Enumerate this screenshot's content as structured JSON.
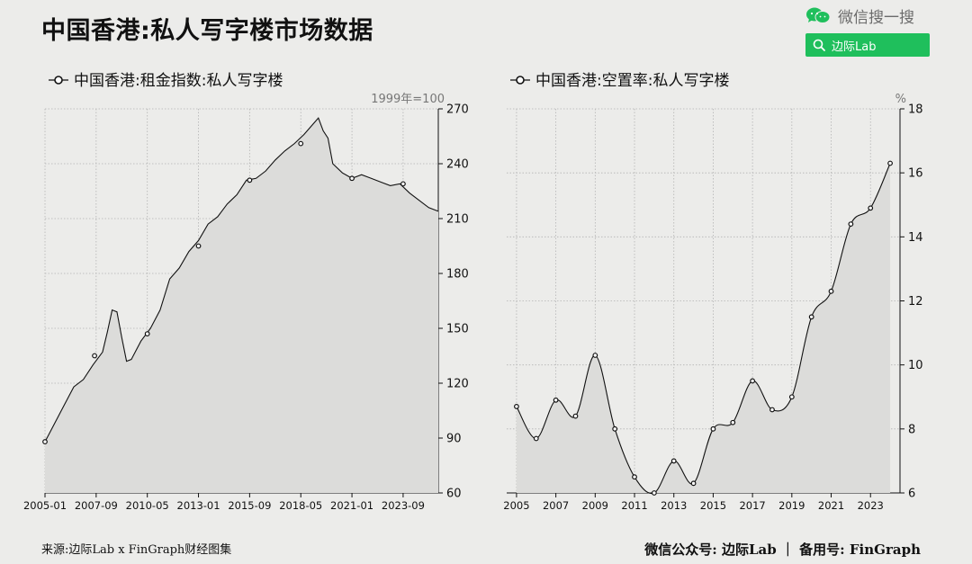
{
  "title": "中国香港:私人写字楼市场数据",
  "wechat": {
    "label": "微信搜一搜",
    "search_label": "边际Lab",
    "brand_color": "#1fbf5c"
  },
  "footer": {
    "source": "来源:边际Lab x FinGraph财经图集",
    "account": "微信公众号: 边际Lab ｜ 备用号: FinGraph"
  },
  "chart_data": [
    {
      "type": "area",
      "legend": "中国香港:租金指数:私人写字楼",
      "unit": "1999年=100",
      "ylim": [
        60,
        270
      ],
      "yticks": [
        60,
        90,
        120,
        150,
        180,
        210,
        240,
        270
      ],
      "xlim": [
        "2005-01",
        "2025-07"
      ],
      "xticks": [
        "2005-01",
        "2007-09",
        "2010-05",
        "2013-01",
        "2015-09",
        "2018-05",
        "2021-01",
        "2023-09"
      ],
      "grid": true,
      "legend_position": "top-left",
      "series": [
        {
          "x": [
            "2005-01",
            "2005-07",
            "2006-01",
            "2006-07",
            "2007-01",
            "2007-07",
            "2008-01",
            "2008-04",
            "2008-07",
            "2008-10",
            "2009-01",
            "2009-04",
            "2009-07",
            "2009-10",
            "2010-01",
            "2010-07",
            "2011-01",
            "2011-07",
            "2012-01",
            "2012-07",
            "2013-01",
            "2013-07",
            "2014-01",
            "2014-07",
            "2015-01",
            "2015-07",
            "2016-01",
            "2016-07",
            "2017-01",
            "2017-07",
            "2018-01",
            "2018-07",
            "2019-01",
            "2019-04",
            "2019-07",
            "2019-10",
            "2020-01",
            "2020-07",
            "2021-01",
            "2021-07",
            "2022-01",
            "2022-07",
            "2023-01",
            "2023-07",
            "2024-01",
            "2024-07",
            "2025-01",
            "2025-07"
          ],
          "values": [
            88,
            98,
            108,
            118,
            122,
            130,
            137,
            148,
            160,
            159,
            145,
            132,
            133,
            138,
            143,
            150,
            160,
            177,
            183,
            192,
            198,
            207,
            211,
            218,
            223,
            231,
            232,
            236,
            242,
            247,
            251,
            256,
            262,
            265,
            258,
            254,
            240,
            235,
            232,
            234,
            232,
            230,
            228,
            229,
            224,
            220,
            216,
            214
          ],
          "markers": [
            [
              0,
              88
            ],
            [
              31,
              135
            ],
            [
              64,
              147
            ],
            [
              96,
              195
            ],
            [
              128,
              231
            ],
            [
              160,
              251
            ],
            [
              192,
              232
            ],
            [
              224,
              229
            ]
          ]
        }
      ]
    },
    {
      "type": "area",
      "legend": "中国香港:空置率:私人写字楼",
      "unit": "%",
      "ylim": [
        6,
        18
      ],
      "yticks": [
        6,
        8,
        10,
        12,
        14,
        16,
        18
      ],
      "xlim": [
        2004.5,
        2024.5
      ],
      "xticks": [
        "2005",
        "2007",
        "2009",
        "2011",
        "2013",
        "2015",
        "2017",
        "2019",
        "2021",
        "2023"
      ],
      "grid": true,
      "legend_position": "top-left",
      "series": [
        {
          "x": [
            2005,
            2006,
            2007,
            2008,
            2009,
            2010,
            2011,
            2012,
            2013,
            2014,
            2015,
            2016,
            2017,
            2018,
            2019,
            2020,
            2021,
            2022,
            2023,
            2024
          ],
          "values": [
            8.7,
            7.7,
            8.9,
            8.4,
            10.3,
            8.0,
            6.5,
            6.0,
            7.0,
            6.3,
            8.0,
            8.2,
            9.5,
            8.6,
            9.0,
            11.5,
            12.3,
            14.4,
            14.9,
            16.3
          ]
        }
      ]
    }
  ]
}
